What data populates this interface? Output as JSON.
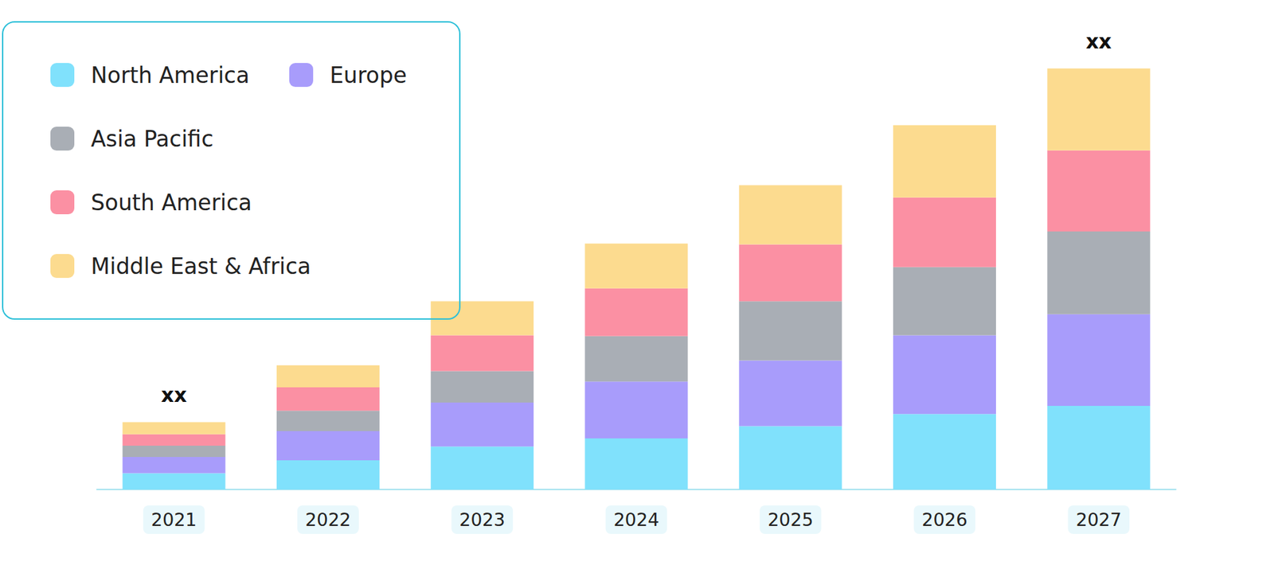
{
  "chart_data": {
    "type": "bar",
    "stacked": true,
    "categories": [
      "2021",
      "2022",
      "2023",
      "2024",
      "2025",
      "2026",
      "2027"
    ],
    "series": [
      {
        "name": "North America",
        "color": "#80e1fc",
        "values": [
          20,
          36,
          53,
          63,
          78,
          93,
          103
        ]
      },
      {
        "name": "Europe",
        "color": "#a89cfb",
        "values": [
          20,
          36,
          54,
          70,
          81,
          97,
          113
        ]
      },
      {
        "name": "Asia Pacific",
        "color": "#a9aeb5",
        "values": [
          14,
          25,
          39,
          56,
          73,
          84,
          102
        ]
      },
      {
        "name": "South America",
        "color": "#fb90a3",
        "values": [
          14,
          29,
          44,
          59,
          70,
          86,
          100
        ]
      },
      {
        "name": "Middle East & Africa",
        "color": "#fcdb8f",
        "values": [
          15,
          27,
          42,
          55,
          73,
          89,
          101
        ]
      }
    ],
    "ylim": [
      0,
      560
    ],
    "tick_labels": "x",
    "grid": false,
    "legend": "top-left",
    "annotations": [
      {
        "category": "2021",
        "text": "xx"
      },
      {
        "category": "2027",
        "text": "xx"
      }
    ]
  }
}
